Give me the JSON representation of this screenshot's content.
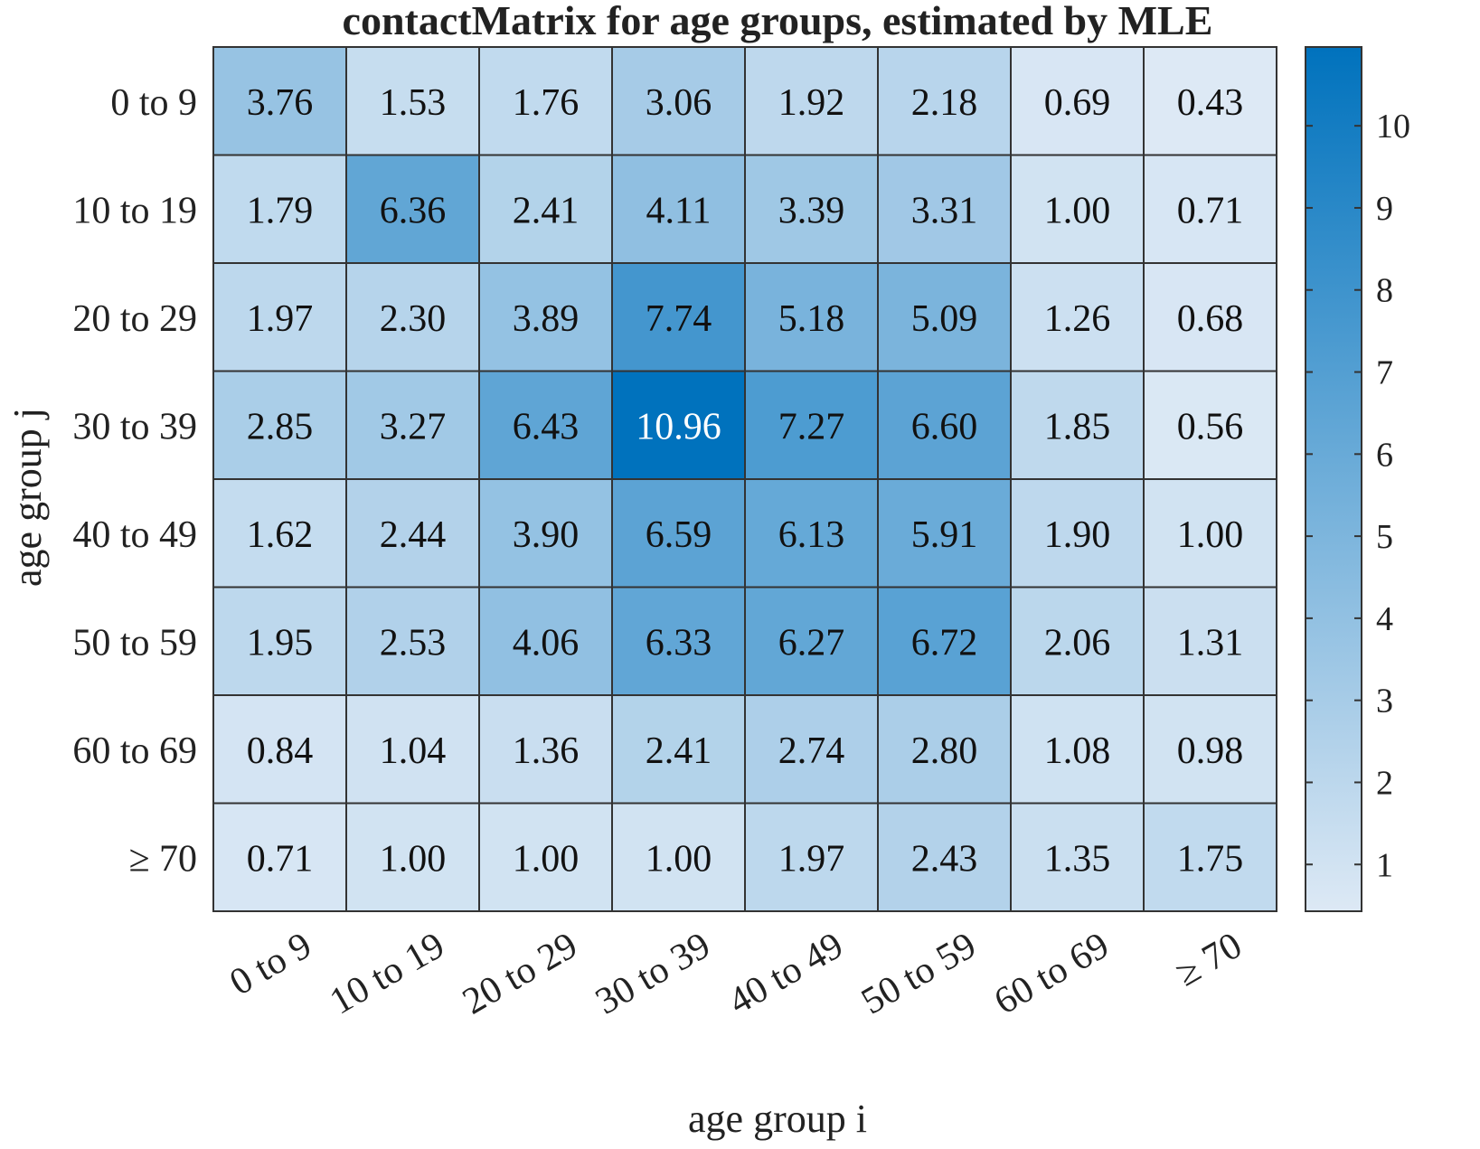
{
  "chart_data": {
    "type": "heatmap",
    "title": "contactMatrix for age groups, estimated by MLE",
    "xlabel": "age group i",
    "ylabel": "age group j",
    "x_categories": [
      "0 to 9",
      "10 to 19",
      "20 to 29",
      "30 to 39",
      "40 to 49",
      "50 to 59",
      "60 to 69",
      "≥ 70"
    ],
    "y_categories": [
      "0 to 9",
      "10 to 19",
      "20 to 29",
      "30 to 39",
      "40 to 49",
      "50 to 59",
      "60 to 69",
      "≥ 70"
    ],
    "values": [
      [
        3.76,
        1.53,
        1.76,
        3.06,
        1.92,
        2.18,
        0.69,
        0.43
      ],
      [
        1.79,
        6.36,
        2.41,
        4.11,
        3.39,
        3.31,
        1.0,
        0.71
      ],
      [
        1.97,
        2.3,
        3.89,
        7.74,
        5.18,
        5.09,
        1.26,
        0.68
      ],
      [
        2.85,
        3.27,
        6.43,
        10.96,
        7.27,
        6.6,
        1.85,
        0.56
      ],
      [
        1.62,
        2.44,
        3.9,
        6.59,
        6.13,
        5.91,
        1.9,
        1.0
      ],
      [
        1.95,
        2.53,
        4.06,
        6.33,
        6.27,
        6.72,
        2.06,
        1.31
      ],
      [
        0.84,
        1.04,
        1.36,
        2.41,
        2.74,
        2.8,
        1.08,
        0.98
      ],
      [
        0.71,
        1.0,
        1.0,
        1.0,
        1.97,
        2.43,
        1.35,
        1.75
      ]
    ],
    "value_labels": [
      [
        "3.76",
        "1.53",
        "1.76",
        "3.06",
        "1.92",
        "2.18",
        "0.69",
        "0.43"
      ],
      [
        "1.79",
        "6.36",
        "2.41",
        "4.11",
        "3.39",
        "3.31",
        "1.00",
        "0.71"
      ],
      [
        "1.97",
        "2.30",
        "3.89",
        "7.74",
        "5.18",
        "5.09",
        "1.26",
        "0.68"
      ],
      [
        "2.85",
        "3.27",
        "6.43",
        "10.96",
        "7.27",
        "6.60",
        "1.85",
        "0.56"
      ],
      [
        "1.62",
        "2.44",
        "3.90",
        "6.59",
        "6.13",
        "5.91",
        "1.90",
        "1.00"
      ],
      [
        "1.95",
        "2.53",
        "4.06",
        "6.33",
        "6.27",
        "6.72",
        "2.06",
        "1.31"
      ],
      [
        "0.84",
        "1.04",
        "1.36",
        "2.41",
        "2.74",
        "2.80",
        "1.08",
        "0.98"
      ],
      [
        "0.71",
        "1.00",
        "1.00",
        "1.00",
        "1.97",
        "2.43",
        "1.35",
        "1.75"
      ]
    ],
    "colorbar": {
      "range": [
        0.43,
        10.96
      ],
      "ticks": [
        1,
        2,
        3,
        4,
        5,
        6,
        7,
        8,
        9,
        10
      ],
      "tick_labels": [
        "1",
        "2",
        "3",
        "4",
        "5",
        "6",
        "7",
        "8",
        "9",
        "10"
      ],
      "placement": "right"
    },
    "colormap": {
      "low": "#dde9f5",
      "high": "#0072bd"
    },
    "text_color_dark": "#111111",
    "text_color_light": "#ffffff",
    "grid_color": "#333333"
  }
}
